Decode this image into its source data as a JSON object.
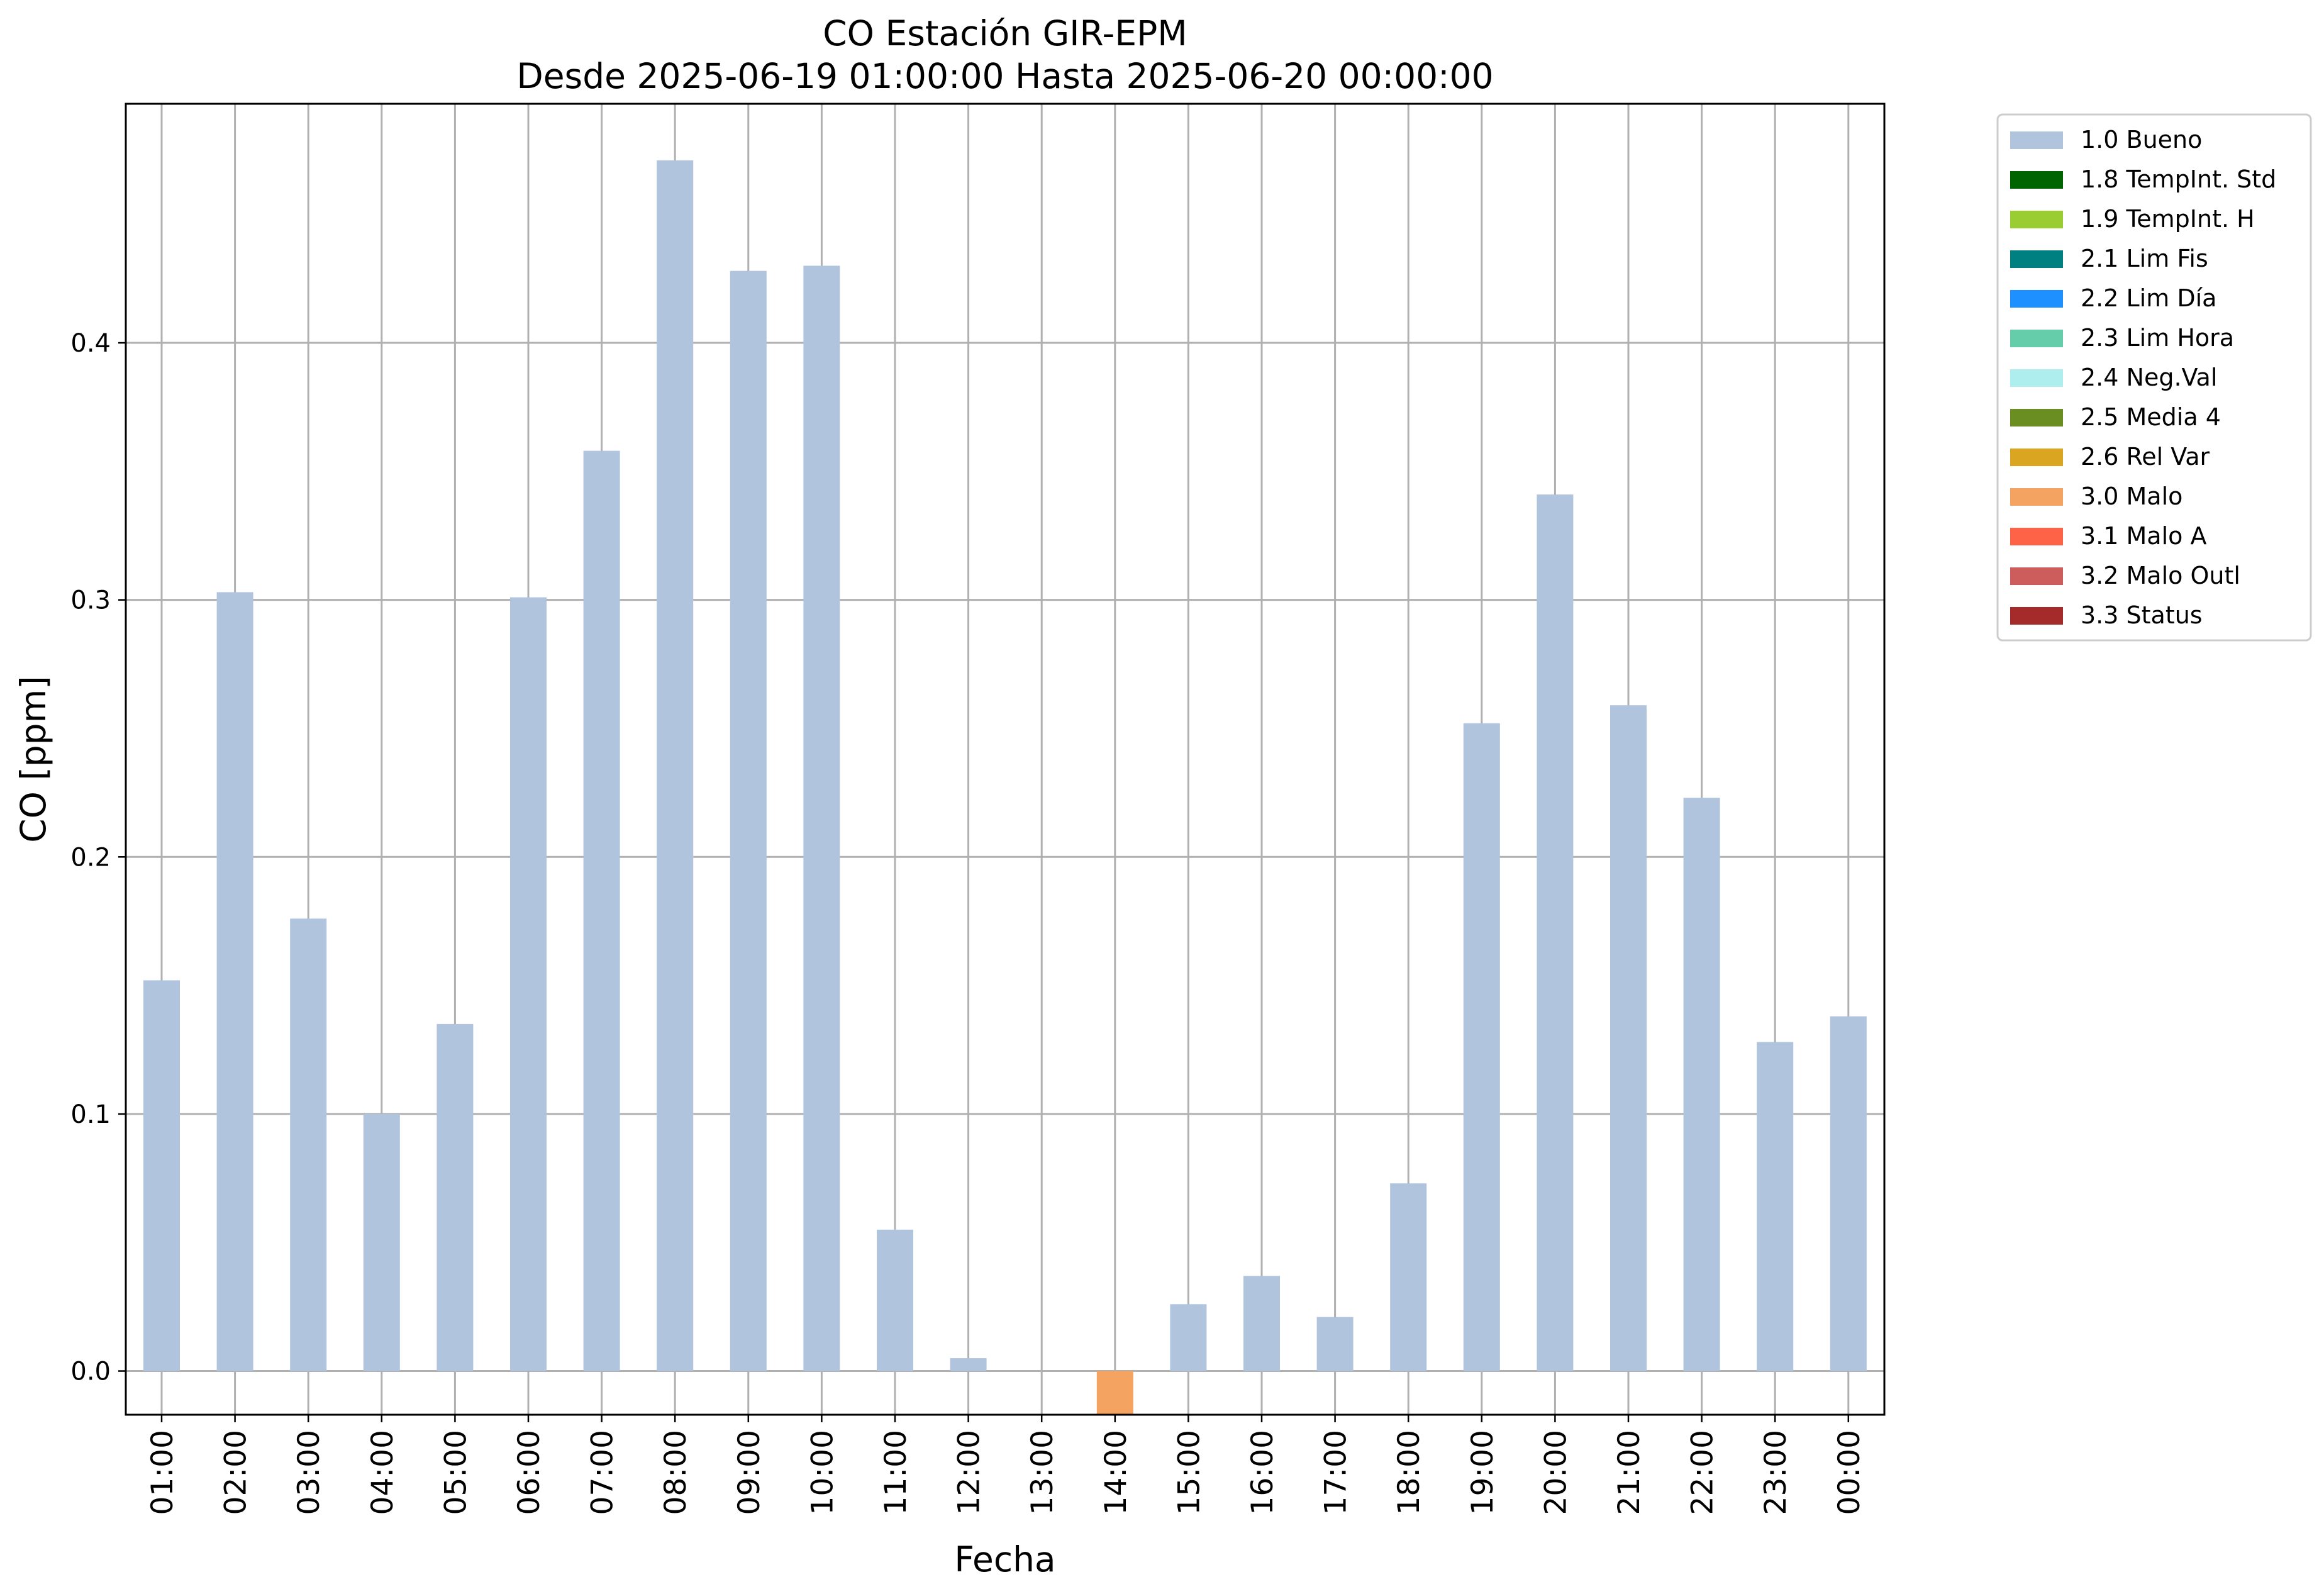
{
  "chart_data": {
    "type": "bar",
    "title": "CO Estación GIR-EPM",
    "subtitle": "Desde 2025-06-19 01:00:00 Hasta 2025-06-20 00:00:00",
    "xlabel": "Fecha",
    "ylabel": "CO [ppm]",
    "ylim": [
      -0.017,
      0.493
    ],
    "yticks": [
      0.0,
      0.1,
      0.2,
      0.3,
      0.4
    ],
    "ytick_labels": [
      "0.0",
      "0.1",
      "0.2",
      "0.3",
      "0.4"
    ],
    "grid": true,
    "legend_position": "outside-top-right",
    "categories": [
      "01:00",
      "02:00",
      "03:00",
      "04:00",
      "05:00",
      "06:00",
      "07:00",
      "08:00",
      "09:00",
      "10:00",
      "11:00",
      "12:00",
      "13:00",
      "14:00",
      "15:00",
      "16:00",
      "17:00",
      "18:00",
      "19:00",
      "20:00",
      "21:00",
      "22:00",
      "23:00",
      "00:00"
    ],
    "values": [
      0.152,
      0.303,
      0.176,
      0.1,
      0.135,
      0.301,
      0.358,
      0.471,
      0.428,
      0.43,
      0.055,
      0.005,
      null,
      -0.017,
      0.026,
      0.037,
      0.021,
      0.073,
      0.252,
      0.341,
      0.259,
      0.223,
      0.128,
      0.138
    ],
    "flags": [
      "1.0",
      "1.0",
      "1.0",
      "1.0",
      "1.0",
      "1.0",
      "1.0",
      "1.0",
      "1.0",
      "1.0",
      "1.0",
      "1.0",
      null,
      "3.0",
      "1.0",
      "1.0",
      "1.0",
      "1.0",
      "1.0",
      "1.0",
      "1.0",
      "1.0",
      "1.0",
      "1.0"
    ],
    "legend": [
      {
        "code": "1.0",
        "label": "1.0 Bueno",
        "color": "#b0c4de"
      },
      {
        "code": "1.8",
        "label": "1.8 TempInt. Std",
        "color": "#006400"
      },
      {
        "code": "1.9",
        "label": "1.9 TempInt. H",
        "color": "#9acd32"
      },
      {
        "code": "2.1",
        "label": "2.1 Lim Fis",
        "color": "#008080"
      },
      {
        "code": "2.2",
        "label": "2.2 Lim Día",
        "color": "#1e90ff"
      },
      {
        "code": "2.3",
        "label": "2.3 Lim Hora",
        "color": "#66cdaa"
      },
      {
        "code": "2.4",
        "label": "2.4 Neg.Val",
        "color": "#afeeee"
      },
      {
        "code": "2.5",
        "label": "2.5 Media 4",
        "color": "#6b8e23"
      },
      {
        "code": "2.6",
        "label": "2.6 Rel Var",
        "color": "#daa520"
      },
      {
        "code": "3.0",
        "label": "3.0 Malo",
        "color": "#f4a460"
      },
      {
        "code": "3.1",
        "label": "3.1 Malo A",
        "color": "#ff6347"
      },
      {
        "code": "3.2",
        "label": "3.2 Malo Outl",
        "color": "#cd5c5c"
      },
      {
        "code": "3.3",
        "label": "3.3 Status",
        "color": "#a52a2a"
      }
    ]
  }
}
